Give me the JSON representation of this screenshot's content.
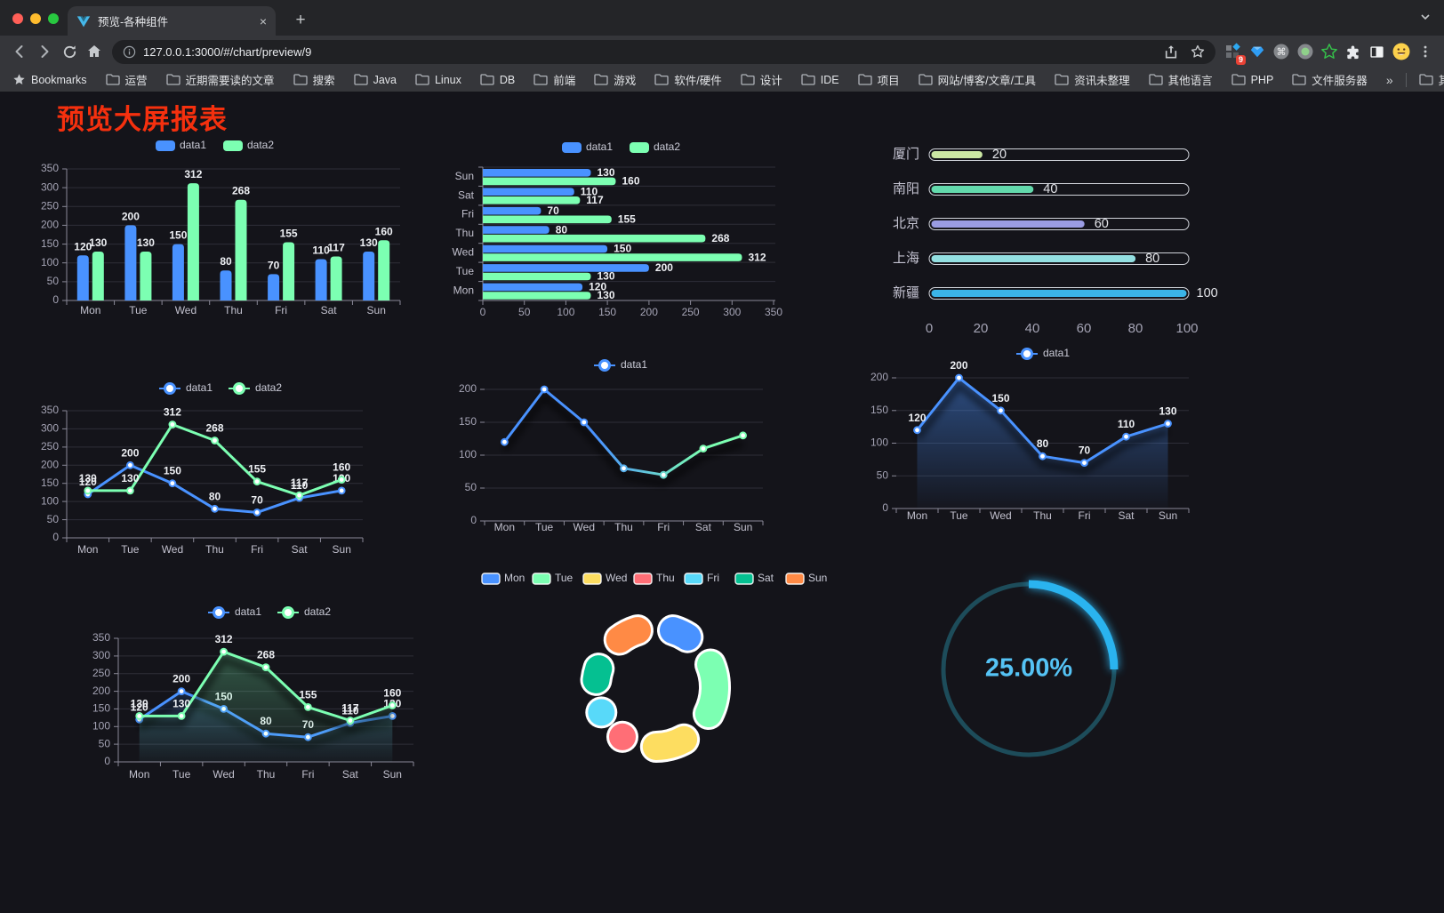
{
  "browser": {
    "tab": {
      "title": "预览-各种组件",
      "close_glyph": "×",
      "new_tab_glyph": "+"
    },
    "url": "127.0.0.1:3000/#/chart/preview/9",
    "extension_badge": "9",
    "bookmarks_label": "Bookmarks",
    "bookmark_items": [
      "运营",
      "近期需要读的文章",
      "搜索",
      "Java",
      "Linux",
      "DB",
      "前端",
      "游戏",
      "软件/硬件",
      "设计",
      "IDE",
      "项目",
      "网站/博客/文章/工具",
      "资讯未整理",
      "其他语言",
      "PHP",
      "文件服务器"
    ],
    "bookmarks_overflow_glyph": "»",
    "other_bookmarks_label": "其他书签"
  },
  "page": {
    "title": "预览大屏报表",
    "title_color": "#f5300e"
  },
  "chart_data": [
    {
      "id": "bar-vertical",
      "type": "bar",
      "title": "",
      "categories": [
        "Mon",
        "Tue",
        "Wed",
        "Thu",
        "Fri",
        "Sat",
        "Sun"
      ],
      "series": [
        {
          "name": "data1",
          "color": "#4992ff",
          "values": [
            120,
            200,
            150,
            80,
            70,
            110,
            130
          ]
        },
        {
          "name": "data2",
          "color": "#7cffb2",
          "values": [
            130,
            130,
            312,
            268,
            155,
            117,
            160
          ]
        }
      ],
      "ylim": [
        0,
        350
      ],
      "ytick_step": 50,
      "grid": true,
      "legend_position": "top"
    },
    {
      "id": "bar-horizontal",
      "type": "bar",
      "orientation": "horizontal",
      "categories": [
        "Mon",
        "Tue",
        "Wed",
        "Thu",
        "Fri",
        "Sat",
        "Sun"
      ],
      "series": [
        {
          "name": "data1",
          "color": "#4992ff",
          "values": [
            120,
            200,
            150,
            80,
            70,
            110,
            130
          ]
        },
        {
          "name": "data2",
          "color": "#7cffb2",
          "values": [
            130,
            130,
            312,
            268,
            155,
            117,
            160
          ]
        }
      ],
      "xlim": [
        0,
        350
      ],
      "xtick_step": 50,
      "grid": true,
      "legend_position": "top"
    },
    {
      "id": "capsule-progress",
      "type": "bar",
      "orientation": "horizontal-capsule",
      "categories": [
        "厦门",
        "南阳",
        "北京",
        "上海",
        "新疆"
      ],
      "values": [
        20,
        40,
        60,
        80,
        100
      ],
      "colors": [
        "#cbe7a3",
        "#63d9ac",
        "#9a9ce3",
        "#93dfe1",
        "#3bb4e7"
      ],
      "xlim": [
        0,
        100
      ],
      "xticks": [
        0,
        20,
        40,
        60,
        80,
        100
      ]
    },
    {
      "id": "line-two-series",
      "type": "line",
      "categories": [
        "Mon",
        "Tue",
        "Wed",
        "Thu",
        "Fri",
        "Sat",
        "Sun"
      ],
      "series": [
        {
          "name": "data1",
          "color": "#4992ff",
          "values": [
            120,
            200,
            150,
            80,
            70,
            110,
            130
          ]
        },
        {
          "name": "data2",
          "color": "#7cffb2",
          "values": [
            130,
            130,
            312,
            268,
            155,
            117,
            160
          ]
        }
      ],
      "ylim": [
        0,
        350
      ],
      "ytick_step": 50,
      "grid": true,
      "legend_position": "top",
      "labels": true
    },
    {
      "id": "line-gradient",
      "type": "line",
      "categories": [
        "Mon",
        "Tue",
        "Wed",
        "Thu",
        "Fri",
        "Sat",
        "Sun"
      ],
      "series": [
        {
          "name": "data1",
          "color": "#4992ff",
          "gradient": [
            "#4992ff",
            "#7cffb2"
          ],
          "values": [
            120,
            200,
            150,
            80,
            70,
            110,
            130
          ]
        }
      ],
      "ylim": [
        0,
        200
      ],
      "ytick_step": 50,
      "grid": true,
      "legend_position": "top",
      "labels": false
    },
    {
      "id": "area-single",
      "type": "area",
      "categories": [
        "Mon",
        "Tue",
        "Wed",
        "Thu",
        "Fri",
        "Sat",
        "Sun"
      ],
      "series": [
        {
          "name": "data1",
          "color": "#4992ff",
          "values": [
            120,
            200,
            150,
            80,
            70,
            110,
            130
          ]
        }
      ],
      "ylim": [
        0,
        200
      ],
      "ytick_step": 50,
      "grid": true,
      "legend_position": "top",
      "labels": true
    },
    {
      "id": "area-two-series",
      "type": "area",
      "categories": [
        "Mon",
        "Tue",
        "Wed",
        "Thu",
        "Fri",
        "Sat",
        "Sun"
      ],
      "series": [
        {
          "name": "data1",
          "color": "#4992ff",
          "values": [
            120,
            200,
            150,
            80,
            70,
            110,
            130
          ]
        },
        {
          "name": "data2",
          "color": "#7cffb2",
          "values": [
            130,
            130,
            312,
            268,
            155,
            117,
            160
          ]
        }
      ],
      "ylim": [
        0,
        350
      ],
      "ytick_step": 50,
      "grid": true,
      "legend_position": "top",
      "labels": true
    },
    {
      "id": "donut-pie",
      "type": "pie",
      "categories": [
        "Mon",
        "Tue",
        "Wed",
        "Thu",
        "Fri",
        "Sat",
        "Sun"
      ],
      "values": [
        120,
        200,
        150,
        80,
        70,
        110,
        130
      ],
      "colors": [
        "#4992ff",
        "#7cffb2",
        "#fddd60",
        "#ff6e76",
        "#58d9f9",
        "#05c091",
        "#ff8a45"
      ],
      "legend_position": "top"
    },
    {
      "id": "gauge-progress",
      "type": "gauge",
      "value": 25,
      "label": "25.00%",
      "progress_color": "#2ab3ef",
      "track_color": "#1d4c5a",
      "text_color": "#55c3f5"
    }
  ]
}
